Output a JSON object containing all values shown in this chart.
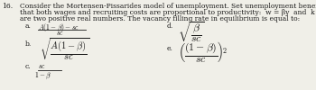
{
  "background_color": "#f0efe8",
  "text_color": "#1a1a1a",
  "q_num": "16.",
  "line1": "Consider the Mortensen-Pissarides model of unemployment. Set unemployment benefits to b=0 and suppose",
  "line2": "that both wages and recruiting costs are proportional to productivity:  w = βy  and  k = cy  where  β  and c",
  "line3": "are two positive real numbers. The vacancy filling rate in equilibrium is equal to:",
  "opt_a_label": "a.",
  "opt_a_num": "$A(1-\\beta)-sc$",
  "opt_a_den": "$sc$",
  "opt_b_label": "b.",
  "opt_b_expr": "$\\sqrt{\\dfrac{A(1-\\beta)}{sc}}$",
  "opt_c_label": "c.",
  "opt_c_num": "$sc$",
  "opt_c_den": "$1-\\beta$",
  "opt_d_label": "d.",
  "opt_d_expr": "$\\sqrt{\\dfrac{\\beta}{sc}}$",
  "opt_e_label": "e.",
  "opt_e_expr": "$\\left(\\dfrac{(1-\\beta)}{sc}\\right)^{\\!2}$",
  "fs_text": 5.5,
  "fs_math": 5.5,
  "fs_math_large": 6.5
}
